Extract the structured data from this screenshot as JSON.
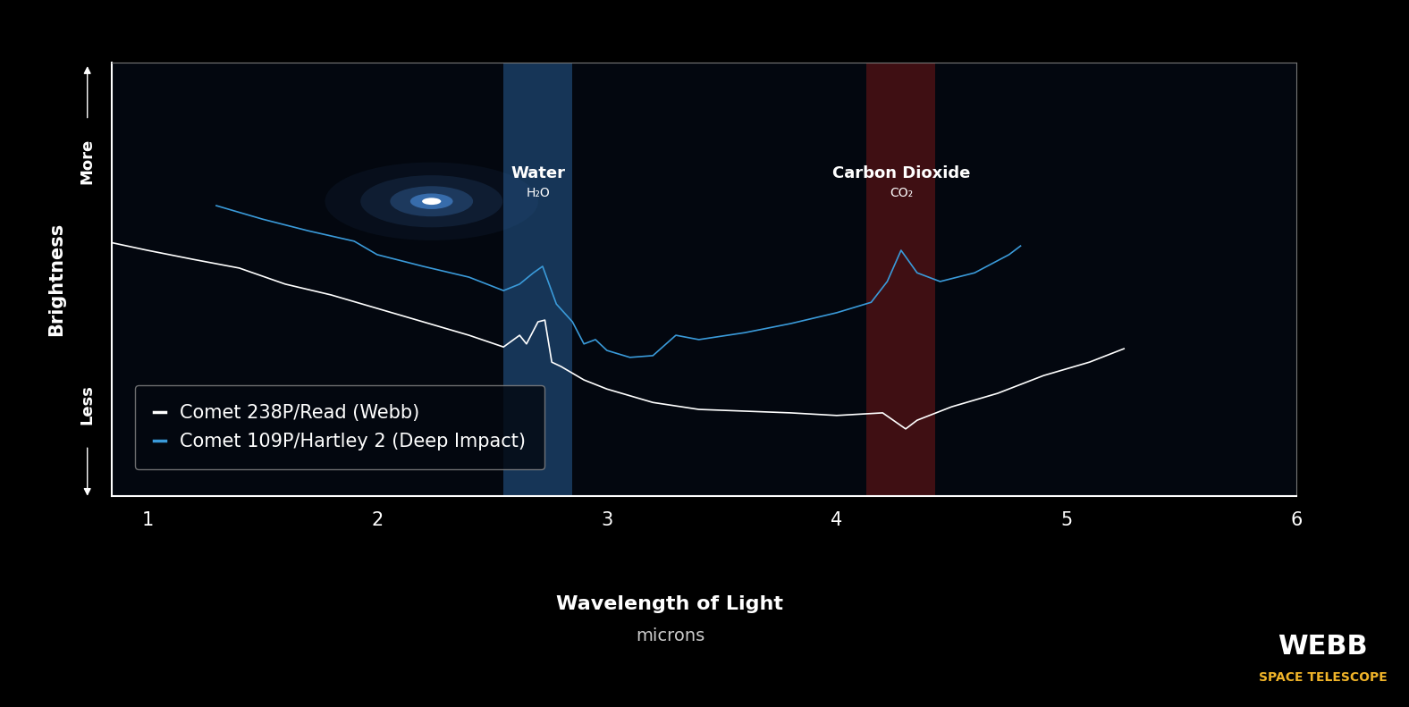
{
  "chart_data": {
    "type": "line",
    "xlabel": "Wavelength of Light",
    "x_unit": "microns",
    "ylabel": "Brightness",
    "y_axis_ends": {
      "high": "More",
      "low": "Less"
    },
    "xlim": [
      0.845,
      6
    ],
    "xticks": [
      1,
      2,
      3,
      4,
      5,
      6
    ],
    "ylim": [
      0,
      100
    ],
    "tick_labels": "x",
    "legend": "lower left",
    "bands": [
      {
        "label": "Water",
        "formula": "H₂O",
        "range": [
          2.55,
          2.85
        ],
        "color": "#2f6fb0"
      },
      {
        "label": "Carbon Dioxide",
        "formula": "CO₂",
        "range": [
          4.13,
          4.43
        ],
        "color": "#8a1a1a"
      }
    ],
    "series": [
      {
        "name": "Comet 238P/Read (Webb)",
        "color": "#ffffff",
        "x": [
          0.85,
          1.0,
          1.2,
          1.4,
          1.6,
          1.8,
          2.0,
          2.2,
          2.4,
          2.55,
          2.62,
          2.65,
          2.7,
          2.73,
          2.76,
          2.8,
          2.9,
          3.0,
          3.2,
          3.4,
          3.6,
          3.8,
          4.0,
          4.2,
          4.3,
          4.35,
          4.5,
          4.7,
          4.9,
          5.1,
          5.25
        ],
        "values": [
          58.4,
          56.7,
          54.6,
          52.6,
          48.9,
          46.4,
          43.3,
          40.2,
          37.1,
          34.4,
          37.1,
          35.1,
          40.2,
          40.6,
          30.9,
          29.9,
          26.8,
          24.7,
          21.6,
          20.0,
          19.6,
          19.2,
          18.6,
          19.2,
          15.5,
          17.5,
          20.6,
          23.7,
          27.8,
          30.9,
          34.0
        ]
      },
      {
        "name": "Comet 109P/Hartley 2 (Deep Impact)",
        "color": "#3a9ad9",
        "x": [
          1.3,
          1.5,
          1.7,
          1.9,
          2.0,
          2.2,
          2.4,
          2.55,
          2.62,
          2.68,
          2.72,
          2.78,
          2.85,
          2.9,
          2.95,
          3.0,
          3.1,
          3.2,
          3.3,
          3.4,
          3.6,
          3.8,
          4.0,
          4.15,
          4.22,
          4.28,
          4.35,
          4.45,
          4.6,
          4.75,
          4.8
        ],
        "values": [
          67.0,
          63.9,
          61.2,
          58.8,
          55.7,
          53.0,
          50.5,
          47.4,
          48.9,
          51.5,
          53.0,
          44.3,
          40.2,
          35.1,
          36.1,
          33.6,
          32.0,
          32.4,
          37.1,
          36.1,
          37.7,
          39.8,
          42.3,
          44.7,
          49.5,
          56.7,
          51.5,
          49.5,
          51.5,
          55.7,
          57.7
        ]
      }
    ],
    "logo": {
      "title": "WEBB",
      "subtitle": "SPACE TELESCOPE"
    }
  }
}
